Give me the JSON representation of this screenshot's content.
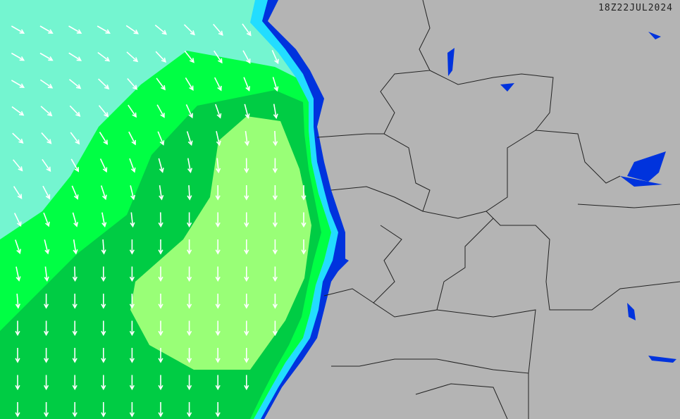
{
  "map": {
    "timestamp": "18Z22JUL2024",
    "colors": {
      "land": "#b4b4b4",
      "sea_low": "#74f5d0",
      "sea_green": "#00ff44",
      "sea_dark_green": "#00cc44",
      "sea_light_green": "#99ff77",
      "coast_cyan": "#22ddff",
      "coast_blue": "#0033dd",
      "arrow": "#ffffff",
      "border": "#222222"
    },
    "icons": {
      "arrow": "wind-arrow-icon"
    }
  }
}
